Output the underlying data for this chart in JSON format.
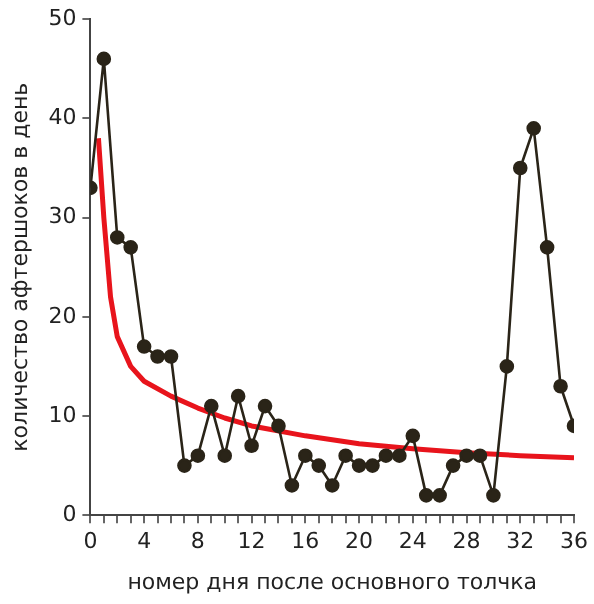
{
  "chart_data": {
    "type": "line",
    "xlabel": "номер дня после основного толчка",
    "ylabel": "количество афтершоков в день",
    "x": [
      0,
      1,
      2,
      3,
      4,
      5,
      6,
      7,
      8,
      9,
      10,
      11,
      12,
      13,
      14,
      15,
      16,
      17,
      18,
      19,
      20,
      21,
      22,
      23,
      24,
      25,
      26,
      27,
      28,
      29,
      30,
      31,
      32,
      33,
      34,
      35,
      36
    ],
    "series": [
      {
        "color": "#2a2418",
        "marker": "circle",
        "values": [
          33,
          46,
          28,
          27,
          17,
          16,
          16,
          5,
          6,
          11,
          6,
          12,
          7,
          11,
          9,
          3,
          6,
          5,
          3,
          6,
          5,
          5,
          6,
          6,
          8,
          2,
          2,
          5,
          6,
          6,
          2,
          15,
          35,
          39,
          27,
          13,
          9
        ]
      },
      {
        "color": "#e8141c",
        "marker": "none",
        "x": [
          0.6,
          1,
          1.5,
          2,
          3,
          4,
          6,
          8,
          10,
          12,
          16,
          20,
          24,
          28,
          32,
          36
        ],
        "values": [
          38,
          30,
          22,
          18,
          15,
          13.5,
          12,
          10.8,
          9.8,
          9,
          8,
          7.2,
          6.7,
          6.3,
          6,
          5.8
        ]
      }
    ],
    "xlim": [
      0,
      36
    ],
    "ylim": [
      0,
      50
    ],
    "xticks": [
      0,
      {
        "value": 1,
        "label": null
      },
      {
        "value": 2,
        "label": null
      },
      {
        "value": 3,
        "label": null
      },
      4,
      {
        "value": 5,
        "label": null
      },
      {
        "value": 6,
        "label": null
      },
      {
        "value": 7,
        "label": null
      },
      8,
      {
        "value": 9,
        "label": null
      },
      {
        "value": 10,
        "label": null
      },
      {
        "value": 11,
        "label": null
      },
      12,
      {
        "value": 13,
        "label": null
      },
      {
        "value": 14,
        "label": null
      },
      {
        "value": 15,
        "label": null
      },
      16,
      {
        "value": 17,
        "label": null
      },
      {
        "value": 18,
        "label": null
      },
      {
        "value": 19,
        "label": null
      },
      20,
      {
        "value": 21,
        "label": null
      },
      {
        "value": 22,
        "label": null
      },
      {
        "value": 23,
        "label": null
      },
      24,
      {
        "value": 25,
        "label": null
      },
      {
        "value": 26,
        "label": null
      },
      {
        "value": 27,
        "label": null
      },
      28,
      {
        "value": 29,
        "label": null
      },
      {
        "value": 30,
        "label": null
      },
      {
        "value": 31,
        "label": null
      },
      32,
      {
        "value": 33,
        "label": null
      },
      {
        "value": 34,
        "label": null
      },
      {
        "value": 35,
        "label": null
      },
      36
    ],
    "yticks": [
      0,
      10,
      20,
      30,
      40,
      50
    ],
    "grid": false,
    "legend": false,
    "line_style": "solid"
  }
}
